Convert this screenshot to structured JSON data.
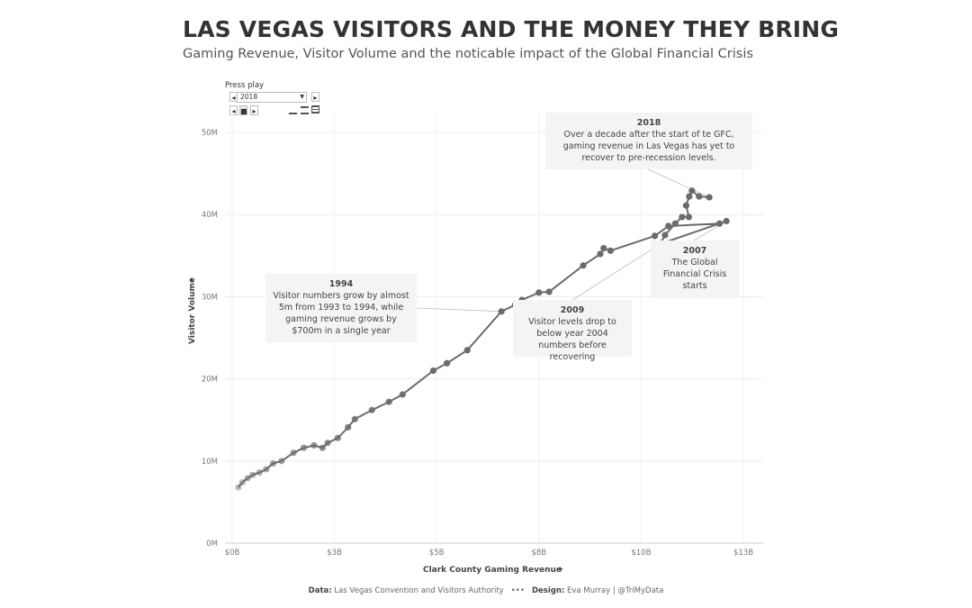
{
  "title": "LAS VEGAS VISITORS AND THE MONEY THEY BRING",
  "subtitle": "Gaming Revenue, Visitor Volume and the noticable impact of the Global Financial Crisis",
  "controls": {
    "press_play": "Press play",
    "year": "2018",
    "prev": "◂",
    "next": "▸",
    "back": "◂",
    "stop": "■",
    "play": "▸"
  },
  "annotations": {
    "a2018": {
      "year": "2018",
      "text": "Over a decade after the start of te GFC, gaming revenue in Las Vegas has yet to recover to pre-recession levels."
    },
    "a2007": {
      "year": "2007",
      "text": "The Global Financial Crisis starts"
    },
    "a2009": {
      "year": "2009",
      "text": "Visitor levels drop to below year 2004 numbers before recovering"
    },
    "a1994": {
      "year": "1994",
      "text": "Visitor numbers grow by almost 5m from 1993 to 1994, while gaming revenue grows by $700m in a single year"
    }
  },
  "footer": {
    "data_label": "Data:",
    "data_source": "Las Vegas Convention and Visitors Authority",
    "dots": "•••",
    "design_label": "Design:",
    "design_credit": "Eva Murray | @TriMyData"
  },
  "chart_data": {
    "type": "line",
    "xlabel": "Clark County Gaming Revenue",
    "ylabel": "Visitor Volume",
    "xlim": [
      0,
      15
    ],
    "ylim": [
      0,
      50
    ],
    "x_ticks": [
      0,
      3,
      6,
      9,
      12,
      15
    ],
    "x_tick_labels": [
      "$0B",
      "$3B",
      "$5B",
      "$8B",
      "$10B",
      "$13B"
    ],
    "y_ticks": [
      0,
      10,
      20,
      30,
      40,
      50
    ],
    "y_tick_labels": [
      "0M",
      "10M",
      "20M",
      "30M",
      "40M",
      "50M"
    ],
    "grid": true,
    "line_color": "#6b6b6b",
    "series": [
      {
        "points": [
          [
            0.18,
            6.8
          ],
          [
            0.3,
            7.4
          ],
          [
            0.45,
            7.9
          ],
          [
            0.6,
            8.3
          ],
          [
            0.8,
            8.6
          ],
          [
            1.0,
            9.0
          ],
          [
            1.2,
            9.7
          ],
          [
            1.45,
            10.0
          ],
          [
            1.8,
            11.0
          ],
          [
            2.1,
            11.6
          ],
          [
            2.4,
            11.9
          ],
          [
            2.65,
            11.6
          ],
          [
            2.8,
            12.2
          ],
          [
            3.1,
            12.8
          ],
          [
            3.4,
            14.1
          ],
          [
            3.6,
            15.1
          ],
          [
            4.1,
            16.2
          ],
          [
            4.6,
            17.2
          ],
          [
            5.0,
            18.1
          ],
          [
            5.9,
            21.0
          ],
          [
            6.3,
            21.9
          ],
          [
            6.9,
            23.5
          ],
          [
            7.9,
            28.2
          ],
          [
            8.3,
            29.0
          ],
          [
            8.5,
            29.6
          ],
          [
            9.0,
            30.5
          ],
          [
            9.3,
            30.6
          ],
          [
            10.3,
            33.8
          ],
          [
            10.8,
            35.2
          ],
          [
            10.9,
            35.9
          ],
          [
            11.1,
            35.6
          ],
          [
            12.4,
            37.4
          ],
          [
            12.8,
            38.6
          ],
          [
            14.3,
            38.9
          ],
          [
            14.5,
            39.2
          ],
          [
            12.55,
            36.4
          ],
          [
            12.7,
            37.5
          ],
          [
            13.0,
            38.9
          ],
          [
            13.2,
            39.7
          ],
          [
            13.4,
            39.7
          ],
          [
            13.32,
            41.1
          ],
          [
            13.41,
            42.2
          ],
          [
            13.49,
            42.9
          ],
          [
            13.7,
            42.2
          ],
          [
            14.0,
            42.1
          ]
        ]
      }
    ]
  }
}
